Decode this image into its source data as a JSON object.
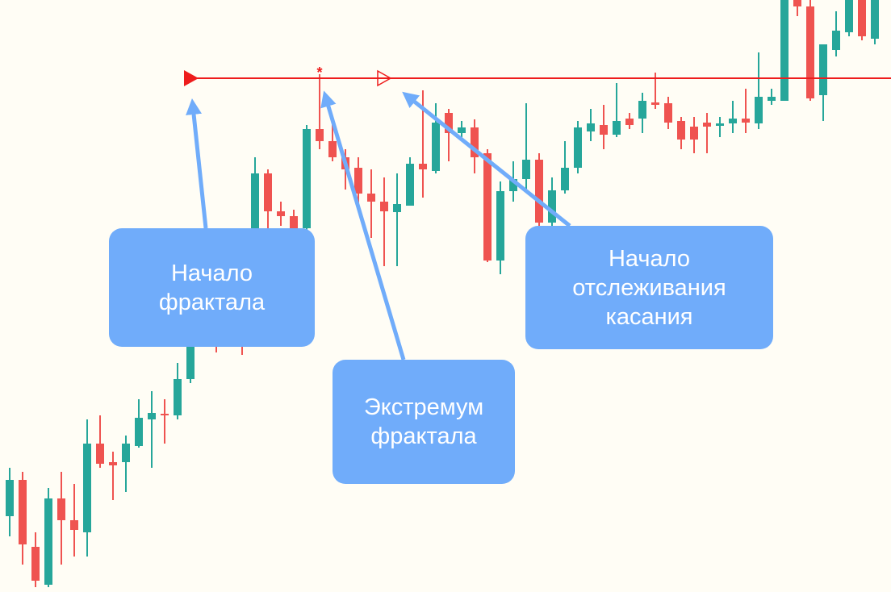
{
  "chart_data": {
    "type": "candlestick",
    "ylim": [
      0,
      734
    ],
    "up_color": "#26a69a",
    "down_color": "#ef5350",
    "open": [
      94,
      139,
      56,
      9,
      116,
      89,
      74,
      184,
      161,
      161,
      181,
      214,
      221,
      219,
      264,
      314,
      354,
      354,
      434,
      434,
      519,
      472,
      466,
      451,
      574,
      559,
      539,
      526,
      494,
      484,
      471,
      479,
      531,
      522,
      594,
      569,
      576,
      544,
      411,
      497,
      512,
      536,
      458,
      498,
      526,
      571,
      579,
      567,
      587,
      587,
      607,
      606,
      584,
      577,
      582,
      578,
      581,
      587,
      581,
      609,
      609,
      740,
      726,
      616,
      672,
      694,
      740,
      686
    ],
    "high": [
      154,
      149,
      74,
      129,
      149,
      134,
      214,
      219,
      174,
      194,
      239,
      249,
      239,
      284,
      334,
      374,
      364,
      444,
      444,
      539,
      524,
      484,
      474,
      579,
      642,
      584,
      549,
      539,
      524,
      514,
      519,
      539,
      622,
      606,
      599,
      584,
      586,
      549,
      509,
      534,
      606,
      544,
      514,
      559,
      584,
      599,
      604,
      631,
      594,
      619,
      644,
      614,
      589,
      589,
      594,
      589,
      609,
      624,
      669,
      624,
      760,
      760,
      740,
      679,
      720,
      760,
      760,
      760
    ],
    "low": [
      69,
      34,
      6,
      6,
      34,
      44,
      44,
      154,
      114,
      124,
      179,
      154,
      184,
      214,
      259,
      309,
      297,
      344,
      294,
      434,
      444,
      454,
      434,
      444,
      549,
      534,
      499,
      479,
      439,
      404,
      404,
      479,
      489,
      519,
      534,
      559,
      519,
      409,
      394,
      484,
      499,
      449,
      449,
      494,
      519,
      559,
      549,
      564,
      574,
      569,
      599,
      574,
      549,
      544,
      544,
      564,
      569,
      569,
      574,
      604,
      609,
      714,
      609,
      584,
      664,
      689,
      684,
      679
    ],
    "close": [
      139,
      59,
      14,
      116,
      89,
      77,
      184,
      159,
      157,
      184,
      216,
      222,
      219,
      264,
      314,
      354,
      334,
      434,
      404,
      519,
      472,
      466,
      451,
      574,
      559,
      539,
      524,
      494,
      484,
      472,
      481,
      531,
      524,
      582,
      569,
      576,
      539,
      411,
      497,
      512,
      536,
      458,
      498,
      526,
      576,
      581,
      567,
      584,
      579,
      609,
      604,
      582,
      561,
      561,
      577,
      581,
      587,
      582,
      614,
      614,
      740,
      726,
      612,
      679,
      696,
      740,
      689,
      740
    ],
    "level": 637,
    "level_color": "#ee1c1c",
    "annotations": [
      {
        "lines": [
          "Начало",
          "фрактала"
        ]
      },
      {
        "lines": [
          "Экстремум",
          "фрактала"
        ]
      },
      {
        "lines": [
          "Начало",
          "отслеживания",
          "касания"
        ]
      }
    ]
  }
}
